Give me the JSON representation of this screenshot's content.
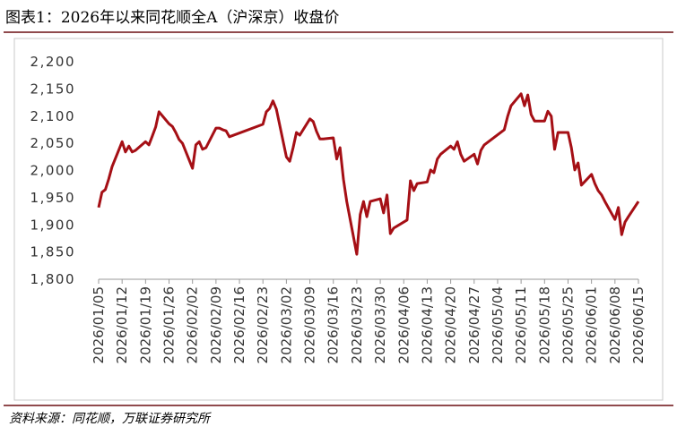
{
  "chart_data": {
    "type": "line",
    "title": "图表1：2026年以来同花顺全A（沪深京）收盘价",
    "source": "资料来源：同花顺，万联证券研究所",
    "x": [
      "2026/01/05",
      "2026/01/06",
      "2026/01/07",
      "2026/01/08",
      "2026/01/09",
      "2026/01/12",
      "2026/01/13",
      "2026/01/14",
      "2026/01/15",
      "2026/01/16",
      "2026/01/19",
      "2026/01/20",
      "2026/01/21",
      "2026/01/22",
      "2026/01/23",
      "2026/01/26",
      "2026/01/27",
      "2026/01/28",
      "2026/01/29",
      "2026/01/30",
      "2026/02/02",
      "2026/02/03",
      "2026/02/04",
      "2026/02/05",
      "2026/02/06",
      "2026/02/09",
      "2026/02/10",
      "2026/02/11",
      "2026/02/12",
      "2026/02/13",
      "2026/02/23",
      "2026/02/24",
      "2026/02/25",
      "2026/02/26",
      "2026/02/27",
      "2026/03/02",
      "2026/03/03",
      "2026/03/04",
      "2026/03/05",
      "2026/03/06",
      "2026/03/09",
      "2026/03/10",
      "2026/03/11",
      "2026/03/12",
      "2026/03/13",
      "2026/03/16",
      "2026/03/17",
      "2026/03/18",
      "2026/03/19",
      "2026/03/20",
      "2026/03/23",
      "2026/03/24",
      "2026/03/25",
      "2026/03/26",
      "2026/03/27",
      "2026/03/30",
      "2026/03/31",
      "2026/04/01",
      "2026/04/02",
      "2026/04/03",
      "2026/04/07",
      "2026/04/08",
      "2026/04/09",
      "2026/04/10",
      "2026/04/13",
      "2026/04/14",
      "2026/04/15",
      "2026/04/16",
      "2026/04/17",
      "2026/04/20",
      "2026/04/21",
      "2026/04/22",
      "2026/04/23",
      "2026/04/24",
      "2026/04/27",
      "2026/04/28",
      "2026/04/29",
      "2026/04/30",
      "2026/05/06",
      "2026/05/07",
      "2026/05/08",
      "2026/05/11",
      "2026/05/12",
      "2026/05/13",
      "2026/05/14",
      "2026/05/15",
      "2026/05/18",
      "2026/05/19",
      "2026/05/20",
      "2026/05/21",
      "2026/05/22",
      "2026/05/25",
      "2026/05/26",
      "2026/05/27",
      "2026/05/28",
      "2026/05/29",
      "2026/06/01",
      "2026/06/02",
      "2026/06/03",
      "2026/06/04",
      "2026/06/05",
      "2026/06/08",
      "2026/06/09",
      "2026/06/10",
      "2026/06/11",
      "2026/06/12",
      "2026/06/15"
    ],
    "series": [
      {
        "color": "#a50f15",
        "values": [
          1932,
          1960,
          1965,
          1984,
          2007,
          2053,
          2034,
          2045,
          2034,
          2037,
          2053,
          2047,
          2063,
          2080,
          2108,
          2086,
          2081,
          2070,
          2057,
          2050,
          2004,
          2047,
          2053,
          2039,
          2042,
          2078,
          2078,
          2075,
          2073,
          2062,
          2085,
          2108,
          2114,
          2128,
          2113,
          2025,
          2017,
          2042,
          2070,
          2065,
          2095,
          2090,
          2072,
          2058,
          2058,
          2060,
          2021,
          2042,
          1984,
          1943,
          1846,
          1919,
          1943,
          1915,
          1943,
          1948,
          1922,
          1955,
          1884,
          1894,
          1909,
          1981,
          1963,
          1976,
          1979,
          2001,
          1996,
          2021,
          2030,
          2045,
          2039,
          2053,
          2030,
          2017,
          2030,
          2012,
          2037,
          2047,
          2075,
          2100,
          2119,
          2141,
          2119,
          2139,
          2103,
          2091,
          2091,
          2109,
          2100,
          2039,
          2070,
          2070,
          2042,
          2001,
          2014,
          1973,
          1993,
          1976,
          1963,
          1955,
          1943,
          1910,
          1932,
          1882,
          1905,
          1915,
          1943
        ]
      }
    ],
    "xticks": [
      "2026/01/05",
      "2026/01/12",
      "2026/01/19",
      "2026/01/26",
      "2026/02/02",
      "2026/02/09",
      "2026/02/16",
      "2026/02/23",
      "2026/03/02",
      "2026/03/09",
      "2026/03/16",
      "2026/03/23",
      "2026/03/30",
      "2026/04/06",
      "2026/04/13",
      "2026/04/20",
      "2026/04/27",
      "2026/05/04",
      "2026/05/11",
      "2026/05/18",
      "2026/05/25",
      "2026/06/01",
      "2026/06/08",
      "2026/06/15"
    ],
    "ylim": [
      1800,
      2200
    ],
    "yticks": [
      {
        "value": 1800,
        "label": "1,800"
      },
      {
        "value": 1850,
        "label": "1,850"
      },
      {
        "value": 1900,
        "label": "1,900"
      },
      {
        "value": 1950,
        "label": "1,950"
      },
      {
        "value": 2000,
        "label": "2,000"
      },
      {
        "value": 2050,
        "label": "2,050"
      },
      {
        "value": 2100,
        "label": "2,100"
      },
      {
        "value": 2150,
        "label": "2,150"
      },
      {
        "value": 2200,
        "label": "2,200"
      }
    ]
  }
}
